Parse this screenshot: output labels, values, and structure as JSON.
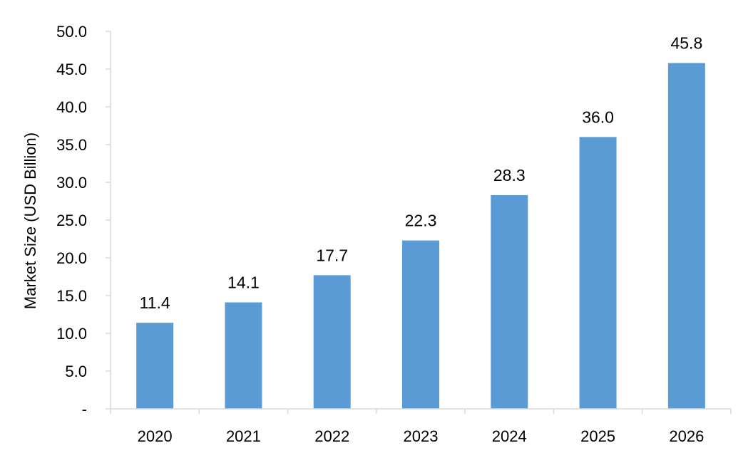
{
  "chart_data": {
    "type": "bar",
    "title": "",
    "xlabel": "",
    "ylabel": "Market Size (USD Billion)",
    "categories": [
      "2020",
      "2021",
      "2022",
      "2023",
      "2024",
      "2025",
      "2026"
    ],
    "values": [
      11.4,
      14.1,
      17.7,
      22.3,
      28.3,
      36.0,
      45.8
    ],
    "data_labels": [
      "11.4",
      "14.1",
      "17.7",
      "22.3",
      "28.3",
      "36.0",
      "45.8"
    ],
    "ylim": [
      0,
      50
    ],
    "yticks": [
      0,
      5,
      10,
      15,
      20,
      25,
      30,
      35,
      40,
      45,
      50
    ],
    "ytick_labels": [
      "-",
      "5.0",
      "10.0",
      "15.0",
      "20.0",
      "25.0",
      "30.0",
      "35.0",
      "40.0",
      "45.0",
      "50.0"
    ],
    "grid": false,
    "legend": "none",
    "bar_color": "#5b9bd5",
    "axis_color": "#d9d9d9"
  }
}
